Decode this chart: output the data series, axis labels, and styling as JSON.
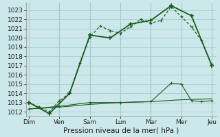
{
  "background_color": "#cce8ea",
  "grid_color": "#a8cdd0",
  "line_color": "#1a5c1a",
  "xlabel": "Pression niveau de la mer( hPa )",
  "xtick_labels": [
    "Dim",
    "Ven",
    "Sam",
    "Lun",
    "Mar",
    "Mer",
    "Jeu"
  ],
  "xtick_positions": [
    0,
    3,
    6,
    9,
    12,
    15,
    18
  ],
  "ylim": [
    1011.5,
    1023.8
  ],
  "yticks": [
    1012,
    1013,
    1014,
    1015,
    1016,
    1017,
    1018,
    1019,
    1020,
    1021,
    1022,
    1023
  ],
  "line1_x": [
    0,
    1,
    2,
    3,
    4,
    5,
    6,
    7,
    8,
    9,
    10,
    11,
    12,
    13,
    14,
    15,
    16,
    17,
    18
  ],
  "line1_y": [
    1013.0,
    1012.5,
    1012.0,
    1013.2,
    1014.0,
    1017.3,
    1020.1,
    1021.3,
    1020.8,
    1020.5,
    1021.2,
    1022.0,
    1021.6,
    1021.9,
    1023.4,
    1022.3,
    1021.2,
    1019.7,
    1017.1
  ],
  "line2_x": [
    0,
    2,
    4,
    6,
    8,
    10,
    12,
    14,
    16,
    18
  ],
  "line2_y": [
    1013.0,
    1011.8,
    1014.0,
    1020.3,
    1020.0,
    1021.5,
    1021.9,
    1023.5,
    1022.4,
    1017.0
  ],
  "line3_x": [
    0,
    3,
    6,
    9,
    12,
    15,
    18
  ],
  "line3_y": [
    1012.3,
    1012.5,
    1012.8,
    1013.0,
    1013.1,
    1013.3,
    1013.4
  ],
  "line4_x": [
    0,
    3,
    6,
    9,
    12,
    14,
    15,
    16,
    17,
    18
  ],
  "line4_y": [
    1012.3,
    1012.6,
    1013.0,
    1013.0,
    1013.1,
    1015.1,
    1015.0,
    1013.2,
    1013.1,
    1013.2
  ]
}
